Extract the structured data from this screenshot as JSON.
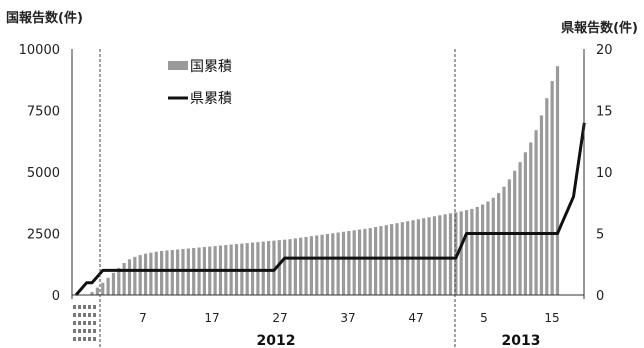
{
  "chart_data": {
    "type": "bar",
    "left_axis_title": "国報告数(件)",
    "right_axis_title": "県報告数(件)",
    "y_left": {
      "min": 0,
      "max": 10000,
      "ticks": [
        "0",
        "2500",
        "5000",
        "7500",
        "10000"
      ]
    },
    "y_right": {
      "min": 0,
      "max": 20,
      "ticks": [
        "0",
        "5",
        "10",
        "15",
        "20"
      ]
    },
    "x_ticks": [
      "7",
      "17",
      "27",
      "37",
      "47",
      "5",
      "15"
    ],
    "years": [
      "2012",
      "2013"
    ],
    "grid": false,
    "legend_position": "top-left",
    "colors": {
      "bar": "#9a9a9a",
      "line": "#111111",
      "axis": "#333333"
    },
    "series": [
      {
        "name": "国累積",
        "kind": "bar",
        "axis": "left",
        "values": [
          0,
          0,
          0,
          120,
          300,
          500,
          700,
          900,
          1100,
          1300,
          1450,
          1550,
          1620,
          1680,
          1720,
          1760,
          1790,
          1810,
          1830,
          1850,
          1870,
          1890,
          1910,
          1930,
          1950,
          1970,
          1990,
          2010,
          2030,
          2050,
          2070,
          2090,
          2110,
          2130,
          2150,
          2170,
          2190,
          2210,
          2230,
          2250,
          2270,
          2300,
          2330,
          2360,
          2390,
          2420,
          2450,
          2480,
          2510,
          2540,
          2570,
          2600,
          2630,
          2660,
          2690,
          2720,
          2760,
          2800,
          2840,
          2880,
          2920,
          2960,
          3000,
          3040,
          3080,
          3120,
          3160,
          3200,
          3240,
          3280,
          3320,
          3360,
          3400,
          3450,
          3500,
          3580,
          3680,
          3800,
          3950,
          4150,
          4400,
          4700,
          5050,
          5400,
          5800,
          6200,
          6700,
          7300,
          8000,
          8700,
          9300
        ]
      },
      {
        "name": "県累積",
        "kind": "line",
        "axis": "right",
        "x": [
          0,
          1,
          2,
          3,
          4,
          5,
          37,
          38,
          39,
          40,
          71,
          72,
          73,
          90,
          91,
          92,
          93,
          94,
          95
        ],
        "values": [
          0,
          0.5,
          1,
          1,
          1.5,
          2,
          2,
          2.5,
          3,
          3,
          3,
          4,
          5,
          5,
          6,
          7,
          8,
          11,
          14
        ]
      }
    ]
  }
}
